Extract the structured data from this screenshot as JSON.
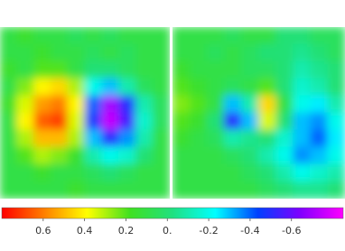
{
  "chart_data": {
    "type": "heatmap",
    "panels": [
      {
        "values": [
          [
            0.1,
            0.15,
            0.1,
            0.1,
            0.05,
            0.1,
            0.05,
            0.1,
            0.1,
            0.1
          ],
          [
            0.1,
            0.1,
            0.15,
            0.1,
            0.1,
            0.05,
            0.1,
            0.05,
            0.1,
            0.1
          ],
          [
            0.15,
            0.1,
            0.2,
            0.2,
            0.1,
            0,
            0,
            0.05,
            0.1,
            0.1
          ],
          [
            0.1,
            0.25,
            0.4,
            0.45,
            0.3,
            -0.2,
            -0.3,
            -0.1,
            0.05,
            0.1
          ],
          [
            0.15,
            0.35,
            0.55,
            0.6,
            0.4,
            -0.4,
            -0.7,
            -0.5,
            -0.1,
            0.05
          ],
          [
            0.1,
            0.4,
            0.65,
            0.7,
            0.35,
            -0.45,
            -0.75,
            -0.55,
            -0.15,
            0.05
          ],
          [
            0.1,
            0.3,
            0.5,
            0.5,
            0.3,
            -0.3,
            -0.5,
            -0.35,
            -0.1,
            0.1
          ],
          [
            0.1,
            0.2,
            0.3,
            0.25,
            0.15,
            -0.1,
            -0.2,
            -0.15,
            0,
            0.1
          ],
          [
            0.1,
            0.1,
            0.15,
            0.1,
            0.1,
            0.05,
            0,
            0.05,
            0.1,
            0.1
          ],
          [
            0.1,
            0.1,
            0.1,
            0.1,
            0.15,
            0.1,
            0.1,
            0.1,
            0.1,
            0.1
          ]
        ]
      },
      {
        "values": [
          [
            0.1,
            0.1,
            0.1,
            0.05,
            0.1,
            0.1,
            0,
            0,
            0.05,
            0.05
          ],
          [
            0.1,
            0.1,
            0.05,
            0.1,
            0.05,
            0,
            0,
            -0.05,
            0,
            0.05
          ],
          [
            0.15,
            0.1,
            0.1,
            0.1,
            0.05,
            0.05,
            0,
            -0.1,
            -0.05,
            0
          ],
          [
            0.2,
            0.15,
            0.1,
            0.05,
            0.1,
            0.2,
            0,
            -0.15,
            -0.1,
            0
          ],
          [
            0.25,
            0.2,
            0.1,
            -0.3,
            -0.1,
            0.45,
            0.1,
            -0.2,
            -0.25,
            -0.1
          ],
          [
            0.2,
            0.15,
            0,
            -0.5,
            -0.3,
            0.35,
            0,
            -0.3,
            -0.35,
            -0.2
          ],
          [
            0.15,
            0.1,
            0.05,
            -0.1,
            -0.05,
            0,
            -0.15,
            -0.3,
            -0.4,
            -0.25
          ],
          [
            0.1,
            0.1,
            0.1,
            0.05,
            0,
            -0.1,
            -0.2,
            -0.35,
            -0.3,
            -0.2
          ],
          [
            0.1,
            0.1,
            0.1,
            0.1,
            0.05,
            0,
            -0.1,
            -0.2,
            -0.15,
            -0.1
          ],
          [
            0.1,
            0.1,
            0.1,
            0.1,
            0.1,
            0.05,
            0,
            -0.05,
            -0.05,
            0
          ]
        ]
      }
    ],
    "colorbar": {
      "lim": [
        0.8,
        -0.85
      ],
      "ticks": [
        0.6,
        0.4,
        0.2,
        {
          "value": 0,
          "label": "0."
        },
        -0.2,
        -0.4,
        -0.6
      ],
      "colors": [
        "#ff0000",
        "#ff8000",
        "#ffff00",
        "#40e020",
        "#20e080",
        "#00ffff",
        "#0040ff",
        "#8000ff",
        "#ff00ff"
      ]
    }
  }
}
